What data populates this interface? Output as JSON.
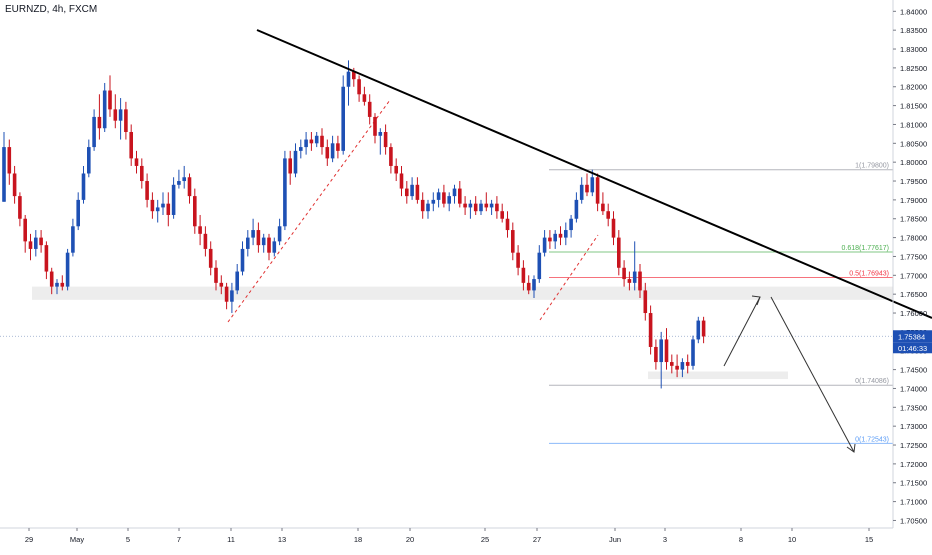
{
  "header": {
    "symbol_title": "EURNZD, 4h, FXCM"
  },
  "colors": {
    "up": "#1e50b4",
    "down": "#c8141e",
    "trendline": "#000000",
    "grid": "#f0f3fa",
    "axis_text": "#131722",
    "zone": "#e6e6e6"
  },
  "price_axis": {
    "ticks": [
      "1.84000",
      "1.83500",
      "1.83000",
      "1.82500",
      "1.82000",
      "1.81500",
      "1.81000",
      "1.80500",
      "1.80000",
      "1.79500",
      "1.79000",
      "1.78500",
      "1.78000",
      "1.77500",
      "1.77000",
      "1.76500",
      "1.76000",
      "1.75500",
      "1.75000",
      "1.74500",
      "1.74000",
      "1.73500",
      "1.73000",
      "1.72500",
      "1.72000",
      "1.71500",
      "1.71000",
      "1.70500"
    ],
    "last_price": "1.75384",
    "countdown": "01:46:33"
  },
  "time_axis": {
    "labels": [
      {
        "label": "29",
        "idx": 0
      },
      {
        "label": "May",
        "idx": 8.5
      },
      {
        "label": "5",
        "idx": 18
      },
      {
        "label": "7",
        "idx": 28
      },
      {
        "label": "11",
        "idx": 38
      },
      {
        "label": "13",
        "idx": 48
      },
      {
        "label": "18",
        "idx": 58
      },
      {
        "label": "20",
        "idx": 68
      },
      {
        "label": "25",
        "idx": 78.5
      },
      {
        "label": "27",
        "idx": 89
      },
      {
        "label": "Jun",
        "idx": 99.5
      },
      {
        "label": "3",
        "idx": 110
      },
      {
        "label": "8",
        "idx": 120
      },
      {
        "label": "10",
        "idx": 130
      },
      {
        "label": "15",
        "idx": 140.5
      }
    ]
  },
  "fibonacci": {
    "levels": [
      {
        "label": "1(1.79800)",
        "price": 1.798,
        "color": "#9598a1"
      },
      {
        "label": "0.618(1.77617)",
        "price": 1.77617,
        "color": "#4caf50"
      },
      {
        "label": "0.5(1.76943)",
        "price": 1.76943,
        "color": "#f23645"
      },
      {
        "label": "0(1.74086)",
        "price": 1.74086,
        "color": "#9598a1"
      },
      {
        "label": "0(1.72543)",
        "price": 1.72543,
        "color": "#5b9cf6"
      }
    ],
    "start_idx": 104,
    "end_idx": 169
  },
  "chart_data": {
    "type": "candlestick",
    "title": "EURNZD, 4h, FXCM",
    "xlabel": "",
    "ylabel": "",
    "ylim": [
      1.703,
      1.843
    ],
    "grid": false,
    "last_price": 1.75384,
    "candles": [
      [
        1.7895,
        1.808,
        1.7895,
        1.804
      ],
      [
        1.804,
        1.806,
        1.794,
        1.797
      ],
      [
        1.797,
        1.799,
        1.789,
        1.791
      ],
      [
        1.791,
        1.792,
        1.783,
        1.785
      ],
      [
        1.785,
        1.786,
        1.776,
        1.779
      ],
      [
        1.779,
        1.781,
        1.774,
        1.777
      ],
      [
        1.777,
        1.782,
        1.775,
        1.78
      ],
      [
        1.78,
        1.782,
        1.776,
        1.778
      ],
      [
        1.778,
        1.779,
        1.769,
        1.771
      ],
      [
        1.771,
        1.772,
        1.765,
        1.767
      ],
      [
        1.767,
        1.769,
        1.765,
        1.768
      ],
      [
        1.768,
        1.77,
        1.766,
        1.767
      ],
      [
        1.767,
        1.777,
        1.766,
        1.776
      ],
      [
        1.776,
        1.785,
        1.775,
        1.783
      ],
      [
        1.783,
        1.792,
        1.782,
        1.79
      ],
      [
        1.79,
        1.799,
        1.789,
        1.797
      ],
      [
        1.797,
        1.806,
        1.796,
        1.804
      ],
      [
        1.804,
        1.814,
        1.803,
        1.812
      ],
      [
        1.812,
        1.818,
        1.806,
        1.809
      ],
      [
        1.809,
        1.821,
        1.808,
        1.819
      ],
      [
        1.819,
        1.823,
        1.812,
        1.814
      ],
      [
        1.814,
        1.818,
        1.809,
        1.811
      ],
      [
        1.811,
        1.817,
        1.806,
        1.814
      ],
      [
        1.814,
        1.816,
        1.806,
        1.808
      ],
      [
        1.808,
        1.81,
        1.799,
        1.801
      ],
      [
        1.801,
        1.803,
        1.797,
        1.799
      ],
      [
        1.799,
        1.801,
        1.793,
        1.795
      ],
      [
        1.795,
        1.797,
        1.788,
        1.79
      ],
      [
        1.79,
        1.792,
        1.785,
        1.787
      ],
      [
        1.787,
        1.79,
        1.784,
        1.788
      ],
      [
        1.788,
        1.792,
        1.786,
        1.789
      ],
      [
        1.789,
        1.792,
        1.783,
        1.786
      ],
      [
        1.786,
        1.796,
        1.785,
        1.794
      ],
      [
        1.794,
        1.798,
        1.793,
        1.795
      ],
      [
        1.795,
        1.799,
        1.793,
        1.796
      ],
      [
        1.796,
        1.797,
        1.789,
        1.791
      ],
      [
        1.791,
        1.793,
        1.781,
        1.783
      ],
      [
        1.783,
        1.786,
        1.778,
        1.781
      ],
      [
        1.781,
        1.783,
        1.775,
        1.777
      ],
      [
        1.777,
        1.779,
        1.77,
        1.772
      ],
      [
        1.772,
        1.774,
        1.766,
        1.768
      ],
      [
        1.768,
        1.77,
        1.765,
        1.767
      ],
      [
        1.767,
        1.768,
        1.761,
        1.763
      ],
      [
        1.763,
        1.768,
        1.76,
        1.766
      ],
      [
        1.766,
        1.773,
        1.765,
        1.771
      ],
      [
        1.771,
        1.779,
        1.77,
        1.777
      ],
      [
        1.777,
        1.782,
        1.775,
        1.78
      ],
      [
        1.78,
        1.785,
        1.778,
        1.782
      ],
      [
        1.782,
        1.784,
        1.776,
        1.778
      ],
      [
        1.778,
        1.781,
        1.776,
        1.78
      ],
      [
        1.78,
        1.781,
        1.774,
        1.776
      ],
      [
        1.776,
        1.78,
        1.775,
        1.779
      ],
      [
        1.779,
        1.785,
        1.778,
        1.783
      ],
      [
        1.783,
        1.803,
        1.782,
        1.801
      ],
      [
        1.801,
        1.803,
        1.794,
        1.797
      ],
      [
        1.797,
        1.805,
        1.796,
        1.803
      ],
      [
        1.803,
        1.806,
        1.801,
        1.804
      ],
      [
        1.804,
        1.808,
        1.802,
        1.806
      ],
      [
        1.806,
        1.808,
        1.803,
        1.805
      ],
      [
        1.805,
        1.808,
        1.804,
        1.807
      ],
      [
        1.807,
        1.809,
        1.802,
        1.804
      ],
      [
        1.804,
        1.806,
        1.799,
        1.801
      ],
      [
        1.801,
        1.807,
        1.8,
        1.805
      ],
      [
        1.805,
        1.807,
        1.801,
        1.803
      ],
      [
        1.803,
        1.823,
        1.802,
        1.82
      ],
      [
        1.82,
        1.827,
        1.815,
        1.824
      ],
      [
        1.824,
        1.825,
        1.82,
        1.822
      ],
      [
        1.822,
        1.823,
        1.816,
        1.818
      ],
      [
        1.818,
        1.82,
        1.815,
        1.816
      ],
      [
        1.816,
        1.818,
        1.81,
        1.812
      ],
      [
        1.812,
        1.813,
        1.805,
        1.807
      ],
      [
        1.807,
        1.809,
        1.802,
        1.808
      ],
      [
        1.808,
        1.81,
        1.802,
        1.804
      ],
      [
        1.804,
        1.805,
        1.797,
        1.799
      ],
      [
        1.799,
        1.801,
        1.795,
        1.797
      ],
      [
        1.797,
        1.799,
        1.791,
        1.793
      ],
      [
        1.793,
        1.795,
        1.789,
        1.791
      ],
      [
        1.791,
        1.796,
        1.79,
        1.794
      ],
      [
        1.794,
        1.796,
        1.789,
        1.79
      ],
      [
        1.79,
        1.792,
        1.785,
        1.787
      ],
      [
        1.787,
        1.79,
        1.785,
        1.789
      ],
      [
        1.789,
        1.792,
        1.787,
        1.79
      ],
      [
        1.79,
        1.793,
        1.788,
        1.792
      ],
      [
        1.792,
        1.794,
        1.788,
        1.789
      ],
      [
        1.789,
        1.792,
        1.787,
        1.791
      ],
      [
        1.791,
        1.794,
        1.789,
        1.793
      ],
      [
        1.793,
        1.795,
        1.788,
        1.789
      ],
      [
        1.789,
        1.791,
        1.786,
        1.788
      ],
      [
        1.788,
        1.79,
        1.785,
        1.789
      ],
      [
        1.789,
        1.791,
        1.786,
        1.787
      ],
      [
        1.787,
        1.79,
        1.786,
        1.789
      ],
      [
        1.789,
        1.792,
        1.787,
        1.788
      ],
      [
        1.788,
        1.79,
        1.786,
        1.789
      ],
      [
        1.789,
        1.791,
        1.785,
        1.787
      ],
      [
        1.787,
        1.789,
        1.784,
        1.785
      ],
      [
        1.785,
        1.787,
        1.78,
        1.782
      ],
      [
        1.782,
        1.784,
        1.774,
        1.776
      ],
      [
        1.776,
        1.778,
        1.77,
        1.772
      ],
      [
        1.772,
        1.774,
        1.766,
        1.768
      ],
      [
        1.768,
        1.77,
        1.765,
        1.766
      ],
      [
        1.766,
        1.77,
        1.764,
        1.769
      ],
      [
        1.769,
        1.778,
        1.768,
        1.776
      ],
      [
        1.776,
        1.782,
        1.775,
        1.78
      ],
      [
        1.78,
        1.782,
        1.777,
        1.779
      ],
      [
        1.779,
        1.782,
        1.777,
        1.781
      ],
      [
        1.781,
        1.783,
        1.778,
        1.78
      ],
      [
        1.78,
        1.784,
        1.778,
        1.782
      ],
      [
        1.782,
        1.786,
        1.78,
        1.785
      ],
      [
        1.785,
        1.792,
        1.784,
        1.79
      ],
      [
        1.79,
        1.796,
        1.789,
        1.794
      ],
      [
        1.794,
        1.797,
        1.791,
        1.792
      ],
      [
        1.792,
        1.798,
        1.791,
        1.796
      ],
      [
        1.796,
        1.797,
        1.787,
        1.789
      ],
      [
        1.789,
        1.792,
        1.786,
        1.787
      ],
      [
        1.787,
        1.789,
        1.783,
        1.785
      ],
      [
        1.785,
        1.787,
        1.778,
        1.78
      ],
      [
        1.78,
        1.782,
        1.77,
        1.772
      ],
      [
        1.772,
        1.774,
        1.767,
        1.769
      ],
      [
        1.769,
        1.771,
        1.766,
        1.768
      ],
      [
        1.768,
        1.779,
        1.766,
        1.771
      ],
      [
        1.771,
        1.773,
        1.764,
        1.766
      ],
      [
        1.766,
        1.768,
        1.758,
        1.76
      ],
      [
        1.76,
        1.762,
        1.749,
        1.751
      ],
      [
        1.751,
        1.753,
        1.745,
        1.747
      ],
      [
        1.747,
        1.755,
        1.74,
        1.753
      ],
      [
        1.753,
        1.756,
        1.745,
        1.747
      ],
      [
        1.747,
        1.749,
        1.744,
        1.746
      ],
      [
        1.746,
        1.749,
        1.743,
        1.745
      ],
      [
        1.745,
        1.748,
        1.743,
        1.747
      ],
      [
        1.747,
        1.749,
        1.744,
        1.746
      ],
      [
        1.746,
        1.754,
        1.745,
        1.753
      ],
      [
        1.753,
        1.759,
        1.752,
        1.758
      ],
      [
        1.758,
        1.759,
        1.752,
        1.7538
      ]
    ],
    "trendline": {
      "from": {
        "idx": 46,
        "price": 1.838
      },
      "to": {
        "idx": 160,
        "price": 1.7625
      }
    },
    "support_zone": {
      "price_low": 1.7635,
      "price_high": 1.767
    }
  }
}
